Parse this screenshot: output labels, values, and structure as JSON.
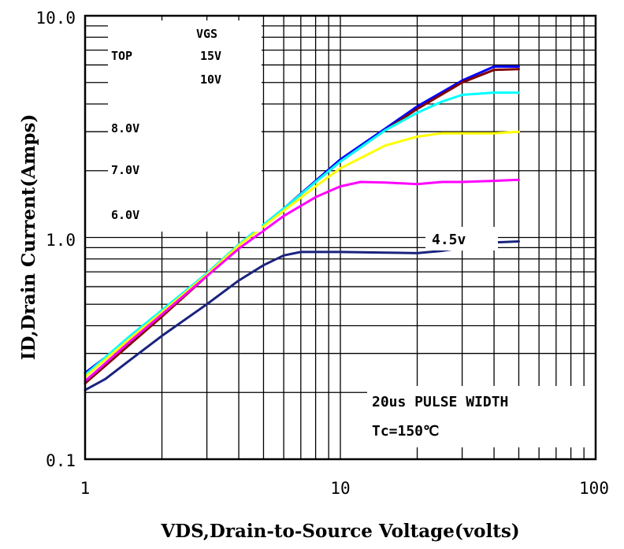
{
  "chart_data": {
    "type": "line",
    "xlabel": "VDS,Drain-to-Source Voltage(volts)",
    "ylabel": "ID,Drain Current(Amps)",
    "xscale": "log",
    "yscale": "log",
    "xlim": [
      1,
      100
    ],
    "ylim": [
      0.1,
      10.0
    ],
    "xticks": [
      1,
      10,
      100
    ],
    "xtick_labels": [
      "1",
      "10",
      "100"
    ],
    "yticks": [
      0.1,
      1.0,
      10.0
    ],
    "ytick_labels": [
      "0.1",
      "1.0",
      "10.0"
    ],
    "grid": true,
    "legend": {
      "header": "VGS",
      "top_label": "TOP",
      "entries": [
        "15V",
        "10V",
        "8.0V",
        "7.0V",
        "6.0V"
      ]
    },
    "annotations": {
      "curve_label": "4.5v",
      "pulse": "20us PULSE WIDTH",
      "temp": "Tc=150℃"
    },
    "series": [
      {
        "vgs": "15V",
        "color": "#0000ff",
        "x": [
          1,
          1.5,
          2,
          3,
          4,
          6,
          8,
          10,
          15,
          20,
          30,
          40,
          50
        ],
        "y": [
          0.245,
          0.35,
          0.45,
          0.68,
          0.93,
          1.35,
          1.8,
          2.25,
          3.1,
          3.9,
          5.1,
          5.9,
          5.9
        ]
      },
      {
        "vgs": "10V",
        "color": "#800000",
        "x": [
          1,
          1.5,
          2,
          3,
          4,
          6,
          8,
          10,
          15,
          20,
          30,
          40,
          50
        ],
        "y": [
          0.22,
          0.33,
          0.44,
          0.67,
          0.92,
          1.35,
          1.78,
          2.2,
          3.05,
          3.8,
          5.0,
          5.7,
          5.75
        ]
      },
      {
        "vgs": "8.0V",
        "color": "#00ffff",
        "x": [
          1,
          1.5,
          2,
          3,
          4,
          6,
          8,
          10,
          15,
          20,
          25,
          30,
          40,
          50
        ],
        "y": [
          0.24,
          0.36,
          0.47,
          0.69,
          0.93,
          1.35,
          1.78,
          2.2,
          3.05,
          3.65,
          4.1,
          4.4,
          4.5,
          4.5
        ]
      },
      {
        "vgs": "7.0V",
        "color": "#ffff00",
        "x": [
          1,
          1.5,
          2,
          3,
          4,
          6,
          8,
          10,
          15,
          20,
          25,
          30,
          40,
          50
        ],
        "y": [
          0.235,
          0.35,
          0.46,
          0.68,
          0.92,
          1.32,
          1.7,
          2.05,
          2.6,
          2.85,
          2.95,
          2.95,
          2.95,
          3.0
        ]
      },
      {
        "vgs": "6.0V",
        "color": "#ff00ff",
        "x": [
          1,
          1.5,
          2,
          3,
          4,
          6,
          8,
          10,
          12,
          15,
          20,
          25,
          30,
          40,
          50
        ],
        "y": [
          0.225,
          0.34,
          0.45,
          0.67,
          0.89,
          1.25,
          1.52,
          1.7,
          1.78,
          1.77,
          1.74,
          1.78,
          1.78,
          1.8,
          1.82
        ]
      },
      {
        "vgs": "4.5V",
        "color": "#1a237e",
        "x": [
          1,
          1.2,
          1.5,
          2,
          3,
          4,
          5,
          6,
          7,
          8,
          10,
          15,
          20,
          25,
          30,
          40,
          50
        ],
        "y": [
          0.205,
          0.23,
          0.28,
          0.36,
          0.5,
          0.64,
          0.75,
          0.83,
          0.86,
          0.86,
          0.86,
          0.855,
          0.85,
          0.87,
          0.9,
          0.95,
          0.96
        ]
      }
    ]
  }
}
